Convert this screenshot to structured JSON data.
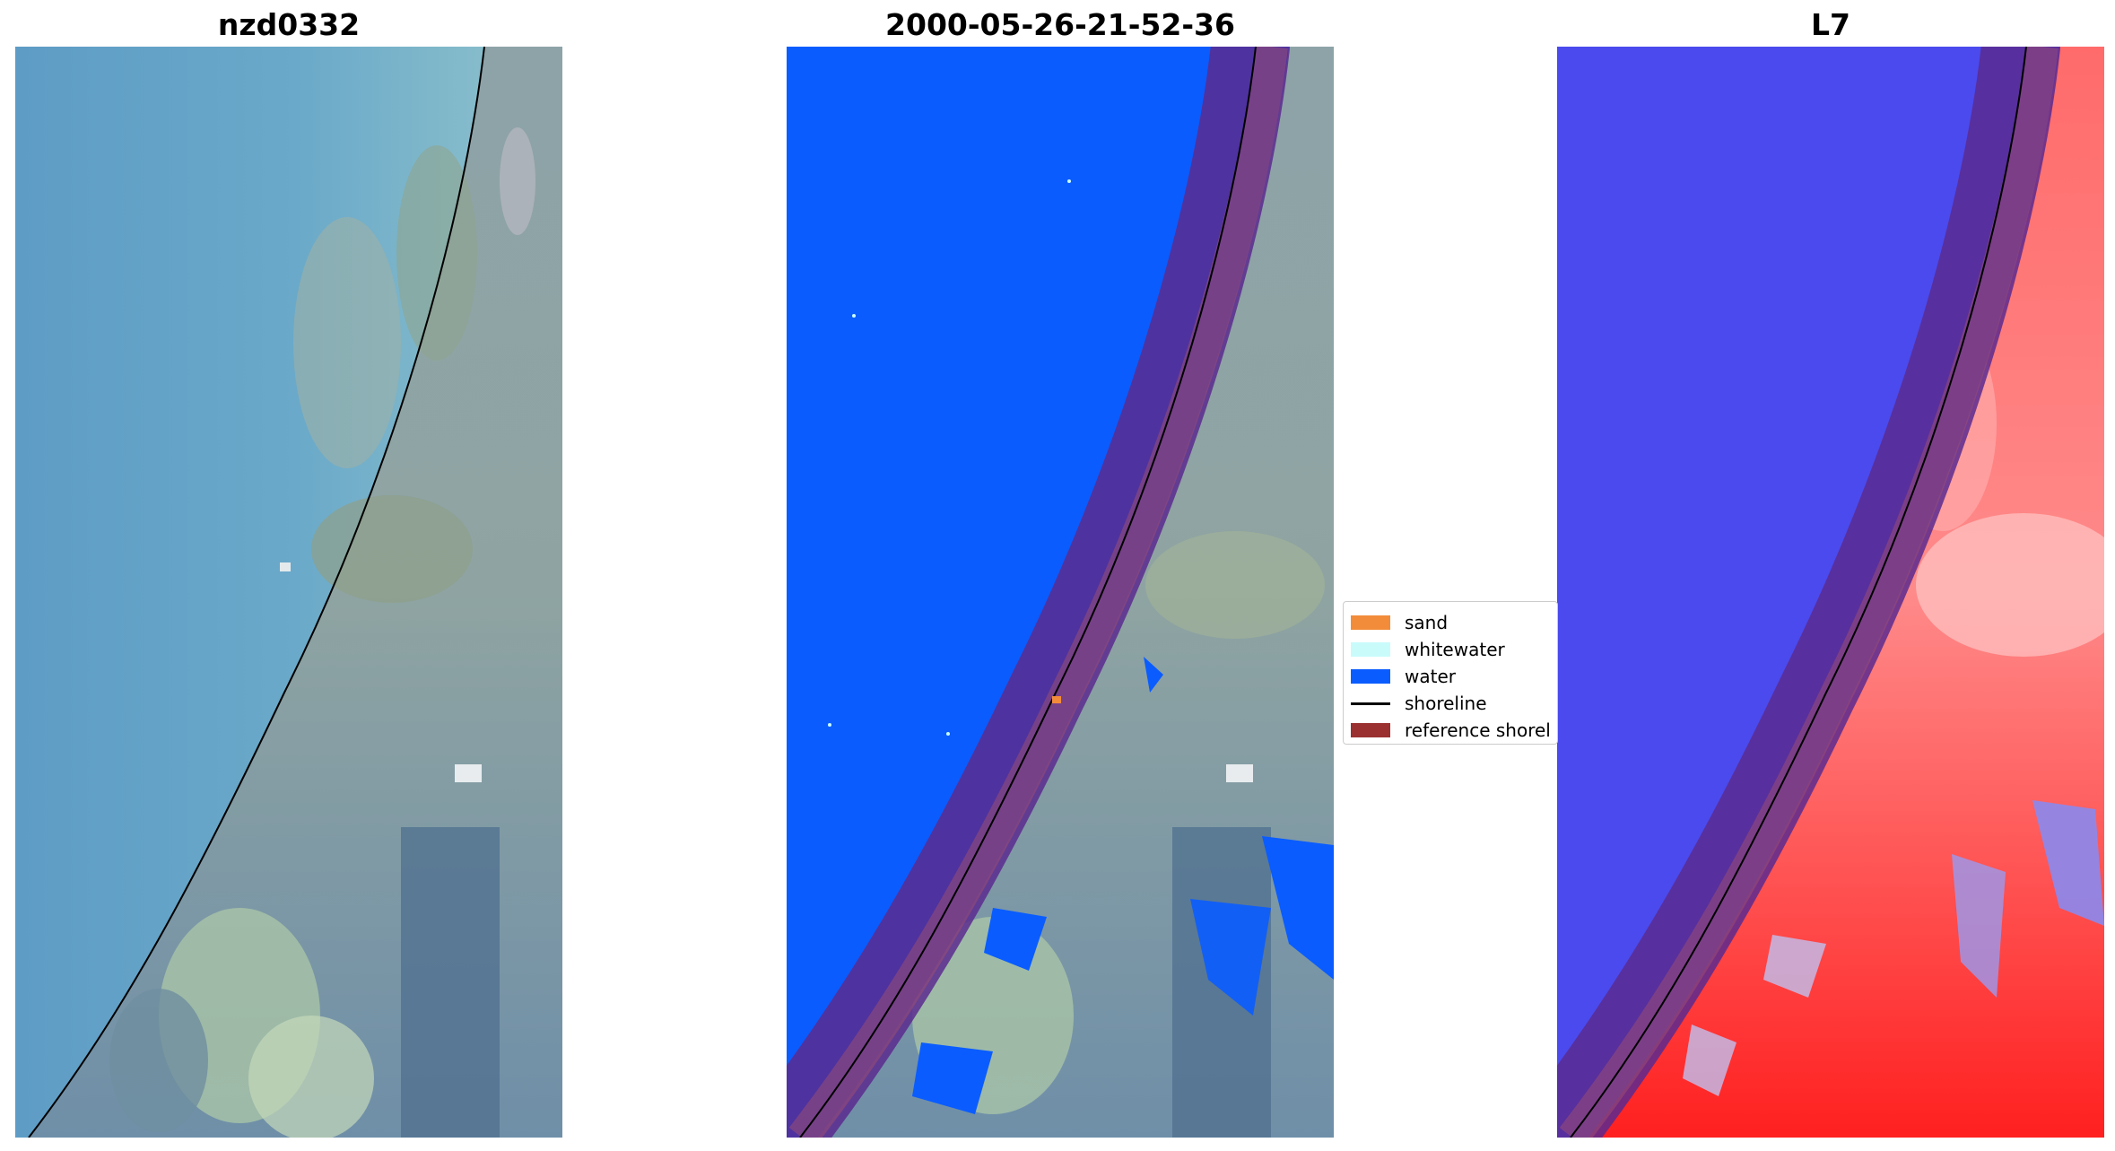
{
  "panels": [
    {
      "title": "nzd0332"
    },
    {
      "title": "2000-05-26-21-52-36"
    },
    {
      "title": "L7"
    }
  ],
  "legend": {
    "items": [
      {
        "label": "sand",
        "color": "#f28c3a",
        "kind": "patch"
      },
      {
        "label": "whitewater",
        "color": "#c9fbfb",
        "kind": "patch"
      },
      {
        "label": "water",
        "color": "#0a5cff",
        "kind": "patch"
      },
      {
        "label": "shoreline",
        "color": "#000000",
        "kind": "line"
      },
      {
        "label": "reference shorel",
        "color": "#9b3030",
        "kind": "patch"
      }
    ]
  },
  "colors": {
    "ocean_rgb": "#5b9cc4",
    "land_rgb": "#7d93a8",
    "classified_water": "#0a5cff",
    "buffer": "#5a2a8f",
    "index_water": "#4a4aee",
    "index_land": "#ff2020"
  }
}
